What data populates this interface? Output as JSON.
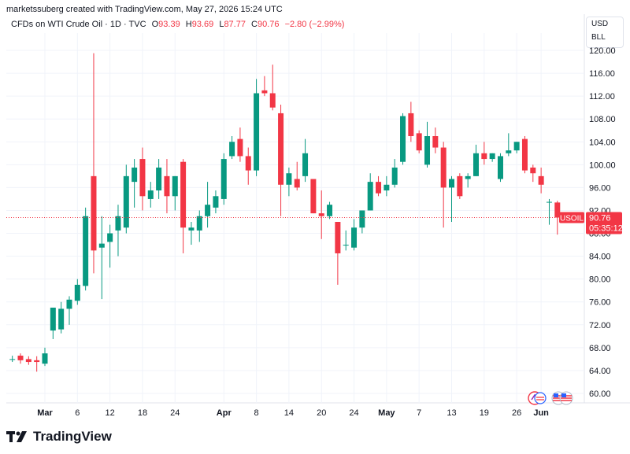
{
  "header": {
    "credit": "marketssuberg created with TradingView.com, May 27, 2026 15:24 UTC"
  },
  "legend": {
    "symbol": "CFDs on WTI Crude Oil · 1D · TVC",
    "o_label": "O",
    "o_value": "93.39",
    "h_label": "H",
    "h_value": "93.69",
    "l_label": "L",
    "l_value": "87.77",
    "c_label": "C",
    "c_value": "90.76",
    "change": "−2.80 (−2.99%)"
  },
  "units": {
    "currency": "USD",
    "unit": "BLL"
  },
  "price_tag": {
    "symbol": "USOIL",
    "price": "90.76",
    "countdown": "05:35:12"
  },
  "footer": {
    "brand": "TradingView"
  },
  "icons": [
    "tradingview-logo-icon",
    "economic-events-icon",
    "us-flag-icon"
  ],
  "colors": {
    "up": "#089981",
    "down": "#f23645",
    "grid": "#f0f3fa"
  },
  "chart_data": {
    "type": "candlestick",
    "ylim": [
      58,
      122
    ],
    "y_ticks": [
      "120.00",
      "116.00",
      "112.00",
      "108.00",
      "104.00",
      "100.00",
      "96.00",
      "92.00",
      "88.00",
      "84.00",
      "80.00",
      "76.00",
      "72.00",
      "68.00",
      "64.00",
      "60.00"
    ],
    "x_ticks": [
      {
        "label": "Mar",
        "day": 0
      },
      {
        "label": "6",
        "day": 4
      },
      {
        "label": "12",
        "day": 8
      },
      {
        "label": "18",
        "day": 12
      },
      {
        "label": "24",
        "day": 16
      },
      {
        "label": "Apr",
        "day": 22
      },
      {
        "label": "8",
        "day": 26
      },
      {
        "label": "14",
        "day": 30
      },
      {
        "label": "20",
        "day": 34
      },
      {
        "label": "24",
        "day": 38
      },
      {
        "label": "May",
        "day": 42
      },
      {
        "label": "7",
        "day": 46
      },
      {
        "label": "13",
        "day": 50
      },
      {
        "label": "19",
        "day": 54
      },
      {
        "label": "26",
        "day": 58
      },
      {
        "label": "Jun",
        "day": 61
      }
    ],
    "last_price": 90.76,
    "candles": [
      {
        "d": -4,
        "o": 66.0,
        "h": 66.6,
        "l": 65.5,
        "c": 66.0
      },
      {
        "d": -3,
        "o": 66.6,
        "h": 67.0,
        "l": 65.2,
        "c": 65.8
      },
      {
        "d": -2,
        "o": 66.0,
        "h": 66.5,
        "l": 65.0,
        "c": 65.5
      },
      {
        "d": -1,
        "o": 65.8,
        "h": 66.5,
        "l": 63.8,
        "c": 65.5
      },
      {
        "d": 0,
        "o": 65.2,
        "h": 68.0,
        "l": 64.8,
        "c": 67.0
      },
      {
        "d": 1,
        "o": 71.0,
        "h": 75.0,
        "l": 69.5,
        "c": 75.0
      },
      {
        "d": 2,
        "o": 71.2,
        "h": 76.0,
        "l": 70.5,
        "c": 74.8
      },
      {
        "d": 3,
        "o": 74.8,
        "h": 77.0,
        "l": 72.0,
        "c": 76.4
      },
      {
        "d": 4,
        "o": 76.2,
        "h": 80.0,
        "l": 75.5,
        "c": 79.0
      },
      {
        "d": 5,
        "o": 78.8,
        "h": 92.5,
        "l": 78.0,
        "c": 91.0
      },
      {
        "d": 6,
        "o": 98.0,
        "h": 119.5,
        "l": 81.0,
        "c": 85.0
      },
      {
        "d": 7,
        "o": 85.5,
        "h": 91.0,
        "l": 76.5,
        "c": 86.2
      },
      {
        "d": 8,
        "o": 86.5,
        "h": 89.5,
        "l": 82.0,
        "c": 88.0
      },
      {
        "d": 9,
        "o": 88.5,
        "h": 93.0,
        "l": 84.0,
        "c": 91.0
      },
      {
        "d": 10,
        "o": 89.0,
        "h": 100.0,
        "l": 88.0,
        "c": 98.0
      },
      {
        "d": 11,
        "o": 97.0,
        "h": 101.0,
        "l": 92.5,
        "c": 99.5
      },
      {
        "d": 12,
        "o": 101.0,
        "h": 103.0,
        "l": 92.0,
        "c": 94.5
      },
      {
        "d": 13,
        "o": 94.0,
        "h": 97.0,
        "l": 92.5,
        "c": 95.5
      },
      {
        "d": 14,
        "o": 95.5,
        "h": 101.0,
        "l": 94.0,
        "c": 99.5
      },
      {
        "d": 15,
        "o": 98.0,
        "h": 101.0,
        "l": 91.5,
        "c": 94.5
      },
      {
        "d": 16,
        "o": 94.5,
        "h": 98.0,
        "l": 92.0,
        "c": 98.0
      },
      {
        "d": 17,
        "o": 100.5,
        "h": 101.0,
        "l": 84.5,
        "c": 89.0
      },
      {
        "d": 18,
        "o": 88.5,
        "h": 90.0,
        "l": 86.0,
        "c": 89.0
      },
      {
        "d": 19,
        "o": 88.5,
        "h": 92.0,
        "l": 86.5,
        "c": 91.0
      },
      {
        "d": 20,
        "o": 91.0,
        "h": 97.0,
        "l": 89.0,
        "c": 93.0
      },
      {
        "d": 21,
        "o": 92.5,
        "h": 95.5,
        "l": 91.5,
        "c": 94.5
      },
      {
        "d": 22,
        "o": 94.0,
        "h": 102.0,
        "l": 93.0,
        "c": 101.0
      },
      {
        "d": 23,
        "o": 101.5,
        "h": 105.0,
        "l": 101.0,
        "c": 104.0
      },
      {
        "d": 24,
        "o": 104.5,
        "h": 106.5,
        "l": 100.5,
        "c": 101.5
      },
      {
        "d": 25,
        "o": 101.5,
        "h": 103.0,
        "l": 96.5,
        "c": 99.0
      },
      {
        "d": 26,
        "o": 99.0,
        "h": 115.0,
        "l": 98.0,
        "c": 112.5
      },
      {
        "d": 27,
        "o": 113.0,
        "h": 115.5,
        "l": 112.0,
        "c": 112.5
      },
      {
        "d": 28,
        "o": 112.5,
        "h": 117.5,
        "l": 109.5,
        "c": 110.0
      },
      {
        "d": 29,
        "o": 109.0,
        "h": 110.5,
        "l": 91.0,
        "c": 96.5
      },
      {
        "d": 30,
        "o": 96.5,
        "h": 99.5,
        "l": 94.5,
        "c": 98.5
      },
      {
        "d": 31,
        "o": 97.5,
        "h": 100.5,
        "l": 95.5,
        "c": 96.0
      },
      {
        "d": 32,
        "o": 98.0,
        "h": 104.5,
        "l": 97.0,
        "c": 102.0
      },
      {
        "d": 33,
        "o": 97.5,
        "h": 97.5,
        "l": 91.5,
        "c": 91.5
      },
      {
        "d": 34,
        "o": 91.5,
        "h": 95.5,
        "l": 87.0,
        "c": 91.0
      },
      {
        "d": 35,
        "o": 91.0,
        "h": 93.5,
        "l": 90.5,
        "c": 93.0
      },
      {
        "d": 36,
        "o": 90.0,
        "h": 90.0,
        "l": 79.0,
        "c": 84.5
      },
      {
        "d": 37,
        "o": 86.0,
        "h": 88.5,
        "l": 85.0,
        "c": 86.0
      },
      {
        "d": 38,
        "o": 85.5,
        "h": 90.5,
        "l": 85.0,
        "c": 89.0
      },
      {
        "d": 39,
        "o": 89.0,
        "h": 92.0,
        "l": 88.0,
        "c": 92.0
      },
      {
        "d": 40,
        "o": 92.0,
        "h": 98.5,
        "l": 92.0,
        "c": 97.0
      },
      {
        "d": 41,
        "o": 97.0,
        "h": 98.0,
        "l": 94.5,
        "c": 95.0
      },
      {
        "d": 42,
        "o": 95.5,
        "h": 98.0,
        "l": 94.5,
        "c": 96.5
      },
      {
        "d": 43,
        "o": 96.5,
        "h": 101.0,
        "l": 96.0,
        "c": 99.5
      },
      {
        "d": 44,
        "o": 100.5,
        "h": 109.0,
        "l": 100.0,
        "c": 108.5
      },
      {
        "d": 45,
        "o": 109.0,
        "h": 111.0,
        "l": 104.0,
        "c": 105.0
      },
      {
        "d": 46,
        "o": 105.5,
        "h": 106.0,
        "l": 102.0,
        "c": 102.5
      },
      {
        "d": 47,
        "o": 100.0,
        "h": 107.5,
        "l": 99.5,
        "c": 105.0
      },
      {
        "d": 48,
        "o": 105.0,
        "h": 106.5,
        "l": 102.0,
        "c": 103.0
      },
      {
        "d": 49,
        "o": 103.0,
        "h": 104.0,
        "l": 89.0,
        "c": 96.0
      },
      {
        "d": 50,
        "o": 96.0,
        "h": 98.0,
        "l": 90.0,
        "c": 97.5
      },
      {
        "d": 51,
        "o": 98.0,
        "h": 98.5,
        "l": 94.0,
        "c": 94.5
      },
      {
        "d": 52,
        "o": 97.5,
        "h": 98.5,
        "l": 96.0,
        "c": 98.0
      },
      {
        "d": 53,
        "o": 98.0,
        "h": 103.5,
        "l": 98.0,
        "c": 102.0
      },
      {
        "d": 54,
        "o": 102.0,
        "h": 104.0,
        "l": 100.0,
        "c": 101.0
      },
      {
        "d": 55,
        "o": 101.0,
        "h": 102.0,
        "l": 100.5,
        "c": 102.0
      },
      {
        "d": 56,
        "o": 97.5,
        "h": 102.0,
        "l": 97.0,
        "c": 101.5
      },
      {
        "d": 57,
        "o": 102.0,
        "h": 105.5,
        "l": 101.5,
        "c": 102.5
      },
      {
        "d": 58,
        "o": 102.5,
        "h": 104.0,
        "l": 102.0,
        "c": 104.0
      },
      {
        "d": 59,
        "o": 104.5,
        "h": 105.0,
        "l": 98.5,
        "c": 99.0
      },
      {
        "d": 60,
        "o": 99.5,
        "h": 100.0,
        "l": 97.0,
        "c": 98.5
      },
      {
        "d": 61,
        "o": 98.0,
        "h": 99.5,
        "l": 95.0,
        "c": 96.5
      },
      {
        "d": 62,
        "o": 93.5,
        "h": 94.0,
        "l": 89.5,
        "c": 93.5
      },
      {
        "d": 63,
        "o": 93.39,
        "h": 93.69,
        "l": 87.77,
        "c": 90.76
      }
    ]
  }
}
